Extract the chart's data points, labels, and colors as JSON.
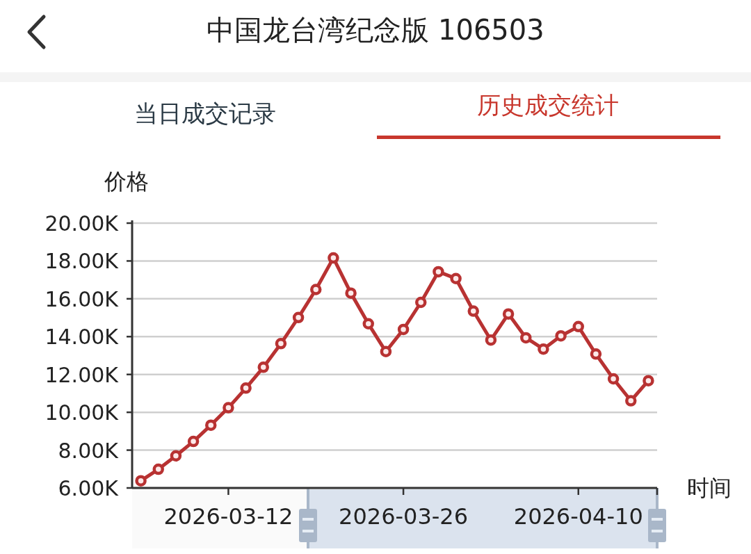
{
  "chart_data": {
    "type": "line",
    "title": "中国龙台湾纪念版 106503",
    "xlabel": "时间",
    "ylabel": "价格",
    "annotations": [
      "当日成交记录",
      "历史成交统计"
    ],
    "categories": [
      null,
      null,
      null,
      null,
      null,
      "2026-03-12",
      null,
      null,
      null,
      null,
      null,
      null,
      null,
      null,
      null,
      "2026-03-26",
      null,
      null,
      null,
      null,
      null,
      null,
      null,
      null,
      null,
      "2026-04-10",
      null,
      null,
      null,
      null
    ],
    "values": [
      6380,
      6990,
      7700,
      8460,
      9320,
      10240,
      11280,
      12380,
      13630,
      15010,
      16490,
      18160,
      16300,
      14680,
      13210,
      14380,
      15810,
      17430,
      17070,
      15350,
      13820,
      15200,
      13940,
      13340,
      14040,
      14530,
      13080,
      11770,
      10610,
      11670
    ],
    "color": "#b83232",
    "marker": "circle",
    "grid": "y",
    "ylim": [
      6000,
      20000
    ],
    "yticks": [
      {
        "value": 6000,
        "label": "6.00K"
      },
      {
        "value": 8000,
        "label": "8.00K"
      },
      {
        "value": 10000,
        "label": "10.00K"
      },
      {
        "value": 12000,
        "label": "12.00K"
      },
      {
        "value": 14000,
        "label": "14.00K"
      },
      {
        "value": 16000,
        "label": "16.00K"
      },
      {
        "value": 18000,
        "label": "18.00K"
      },
      {
        "value": 20000,
        "label": "20.00K"
      }
    ]
  }
}
